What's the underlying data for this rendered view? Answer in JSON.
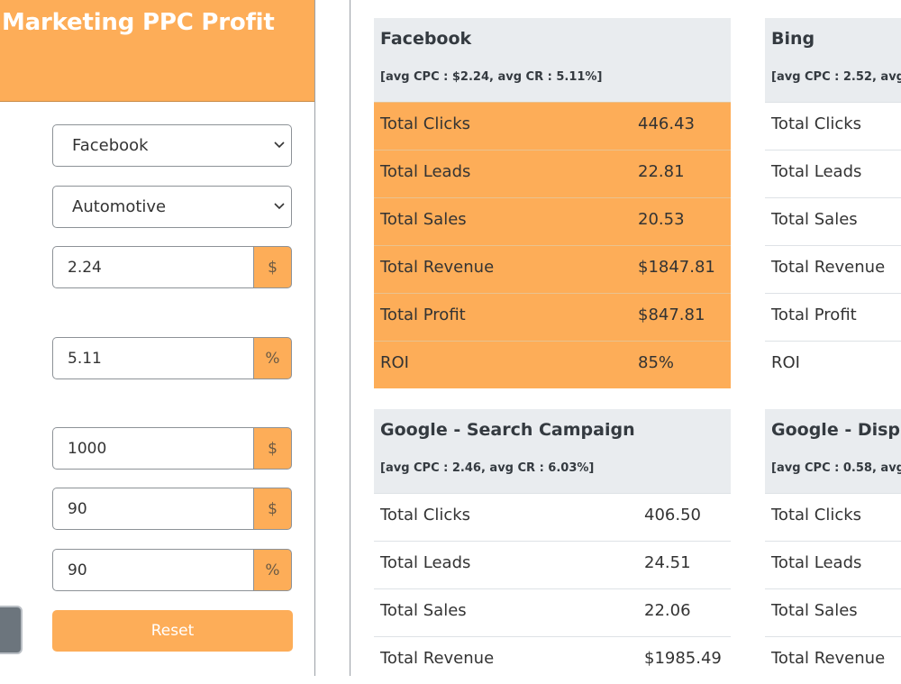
{
  "sidebar": {
    "title": "Marketing PPC Profit",
    "platform_select": "Facebook",
    "industry_select": "Automotive",
    "cpc_value": "2.24",
    "cpc_addon": "$",
    "cr_value": "5.11",
    "cr_addon": "%",
    "budget_value": "1000",
    "budget_addon": "$",
    "sale_value": "90",
    "sale_addon": "$",
    "close_rate_value": "90",
    "close_rate_addon": "%",
    "reset_label": "Reset"
  },
  "icons": {
    "select_chevron": "chevron-down-icon"
  },
  "colors": {
    "accent": "#fdad58",
    "header_gray": "#e9ecef",
    "button_gray": "#6c757d"
  },
  "cards": {
    "facebook": {
      "title": "Facebook",
      "subtitle": "[avg CPC : $2.24, avg CR : 5.11%]",
      "rows": [
        {
          "label": "Total Clicks",
          "value": "446.43"
        },
        {
          "label": "Total Leads",
          "value": "22.81"
        },
        {
          "label": "Total Sales",
          "value": "20.53"
        },
        {
          "label": "Total Revenue",
          "value": "$1847.81"
        },
        {
          "label": "Total Profit",
          "value": "$847.81"
        },
        {
          "label": "ROI",
          "value": "85%"
        }
      ]
    },
    "bing": {
      "title": "Bing",
      "subtitle": "[avg CPC : 2.52, avg C",
      "rows": [
        {
          "label": "Total Clicks"
        },
        {
          "label": "Total Leads"
        },
        {
          "label": "Total Sales"
        },
        {
          "label": "Total Revenue"
        },
        {
          "label": "Total Profit"
        },
        {
          "label": "ROI"
        }
      ]
    },
    "google_search": {
      "title": "Google - Search Campaign",
      "subtitle": "[avg CPC : 2.46, avg CR : 6.03%]",
      "rows": [
        {
          "label": "Total Clicks",
          "value": "406.50"
        },
        {
          "label": "Total Leads",
          "value": "24.51"
        },
        {
          "label": "Total Sales",
          "value": "22.06"
        },
        {
          "label": "Total Revenue",
          "value": "$1985.49"
        }
      ]
    },
    "google_display": {
      "title": "Google - Displa",
      "subtitle": "[avg CPC : 0.58, avg C",
      "rows": [
        {
          "label": "Total Clicks"
        },
        {
          "label": "Total Leads"
        },
        {
          "label": "Total Sales"
        },
        {
          "label": "Total Revenue"
        }
      ]
    }
  }
}
